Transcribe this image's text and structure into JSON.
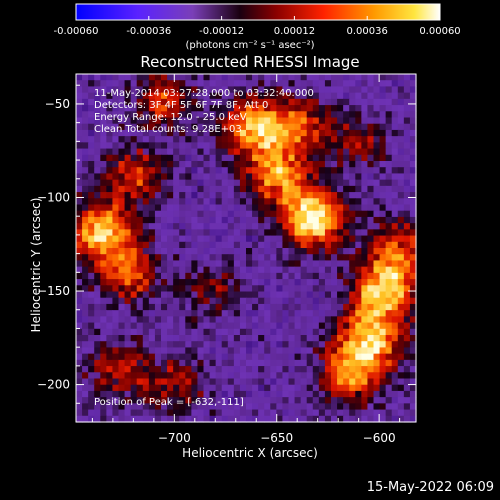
{
  "colorbar": {
    "tick_labels": [
      "-0.00060",
      "-0.00036",
      "-0.00012",
      "0.00012",
      "0.00036",
      "0.00060"
    ],
    "unit_label": "(photons cm⁻² s⁻¹ asec⁻²)",
    "range": [
      -0.0006,
      0.0006
    ]
  },
  "annotations": {
    "time_range": "11-May-2014 03:27:28.000 to 03:32:40.000",
    "detectors": "Detectors: 3F 4F 5F 6F 7F 8F, Att 0",
    "energy_range": "Energy Range: 12.0 - 25.0 keV",
    "clean": "Clean    Total counts: 9.28E+03",
    "peak": "Position of Peak = [-632,-111]"
  },
  "footer": "15-May-2022 06:09",
  "chart_data": {
    "type": "heatmap",
    "title": "Reconstructed RHESSI Image",
    "xlabel": "Heliocentric X (arcsec)",
    "ylabel": "Heliocentric Y (arcsec)",
    "x_ticks": [
      "-700",
      "-650",
      "-600"
    ],
    "y_ticks": [
      "-50",
      "-100",
      "-150",
      "-200"
    ],
    "xlim": [
      -748,
      -582
    ],
    "ylim": [
      -220,
      -34
    ],
    "peak": [
      -632,
      -111
    ],
    "colormap": "blue-purple-black-red-orange-yellow-white",
    "sources": [
      {
        "x": -632,
        "y": -111,
        "strength": 1.0
      },
      {
        "x": -662,
        "y": -62,
        "strength": 0.75
      },
      {
        "x": -650,
        "y": -88,
        "strength": 0.7
      },
      {
        "x": -735,
        "y": -118,
        "strength": 0.85
      },
      {
        "x": -722,
        "y": -140,
        "strength": 0.6
      },
      {
        "x": -720,
        "y": -88,
        "strength": 0.55
      },
      {
        "x": -705,
        "y": -48,
        "strength": 0.5
      },
      {
        "x": -728,
        "y": -192,
        "strength": 0.45
      },
      {
        "x": -700,
        "y": -200,
        "strength": 0.4
      },
      {
        "x": -598,
        "y": -150,
        "strength": 0.85
      },
      {
        "x": -604,
        "y": -175,
        "strength": 0.8
      },
      {
        "x": -614,
        "y": -194,
        "strength": 0.7
      },
      {
        "x": -590,
        "y": -128,
        "strength": 0.55
      },
      {
        "x": -640,
        "y": -62,
        "strength": 0.55
      },
      {
        "x": -610,
        "y": -70,
        "strength": 0.35
      },
      {
        "x": -680,
        "y": -150,
        "strength": 0.3
      }
    ]
  }
}
